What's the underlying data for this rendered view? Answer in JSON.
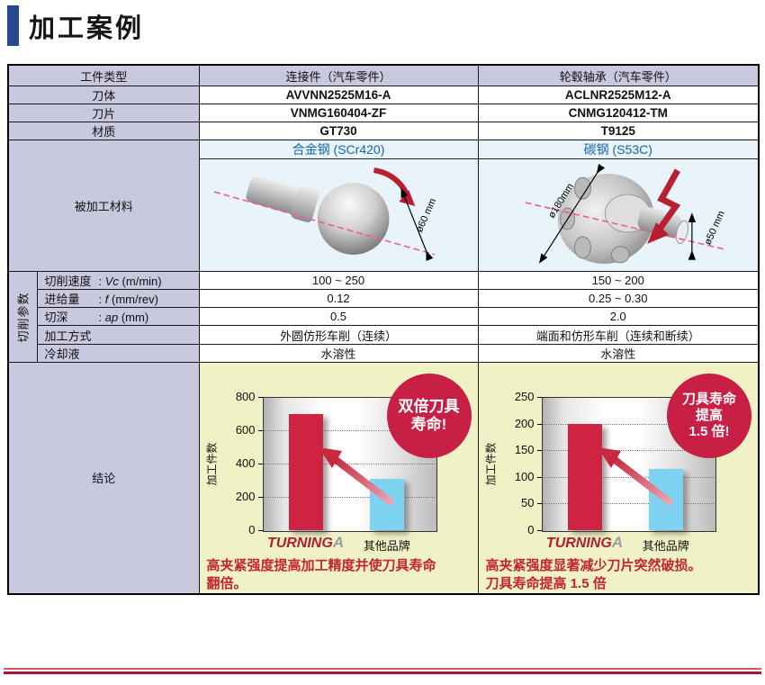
{
  "page": {
    "title": "加工案例"
  },
  "colors": {
    "accent_navy": "#27488f",
    "lavender": "#c8c8de",
    "light_blue": "#e9f3fa",
    "blue_text": "#1565ab",
    "yellow": "#f0f1c4",
    "red_bar": "#cf2342",
    "blue_bar": "#7ed3f2",
    "badge_red": "#c81f45",
    "caption_red": "#c32430",
    "rule_red": "#ab1330",
    "pink_dash": "#f056a2"
  },
  "table": {
    "rows": {
      "workpiece_type": {
        "label": "工件类型",
        "col1": "连接件（汽车零件）",
        "col2": "轮毂轴承（汽车零件）"
      },
      "tool_body": {
        "label": "刀体",
        "col1": "AVVNN2525M16-A",
        "col2": "ACLNR2525M12-A"
      },
      "insert": {
        "label": "刀片",
        "col1": "VNMG160404-ZF",
        "col2": "CNMG120412-TM"
      },
      "grade": {
        "label": "材质",
        "col1": "GT730",
        "col2": "T9125"
      },
      "material": {
        "label": "被加工材料",
        "col1_header": "合金钢 (SCr420)",
        "col2_header": "碳钢 (S53C)",
        "col1_dim": "ø60 mm",
        "col2_dim_outer": "ø180mm",
        "col2_dim_inner": "ø50 mm"
      },
      "params_group": "切削参数",
      "cutting_speed": {
        "label": "切削速度",
        "colon": ":",
        "symbol": "Vc",
        "unit": "(m/min)",
        "col1": "100 ~ 250",
        "col2": "150 ~ 200"
      },
      "feed": {
        "label": "进给量",
        "colon": ":",
        "symbol": "f",
        "unit": "(mm/rev)",
        "col1": "0.12",
        "col2": "0.25 ~ 0.30"
      },
      "depth_of_cut": {
        "label": "切深",
        "colon": ":",
        "symbol": "ap",
        "unit": "(mm)",
        "col1": "0.5",
        "col2": "2.0"
      },
      "method": {
        "label": "加工方式",
        "col1": "外圆仿形车削（连续）",
        "col2": "端面和仿形车削（连续和断续）"
      },
      "coolant": {
        "label": "冷却液",
        "col1": "水溶性",
        "col2": "水溶性"
      },
      "conclusion": {
        "label": "结论"
      }
    }
  },
  "logo": {
    "text": "TURNING",
    "suffix": "A"
  },
  "chart_data": [
    {
      "type": "bar",
      "title": "",
      "ylabel": "加工件数",
      "xlabel": "",
      "ylim": [
        0,
        800
      ],
      "yticks": [
        0,
        200,
        400,
        600,
        800
      ],
      "categories": [
        "TURNINGA",
        "其他品牌"
      ],
      "values": [
        700,
        310
      ],
      "bar_colors": [
        "#cf2342",
        "#7ed3f2"
      ],
      "grid": true,
      "legend_position": "none",
      "badge_lines": [
        "双倍刀具",
        "寿命!"
      ],
      "caption_lines": [
        "高夹紧强度提高加工精度并使刀具寿命",
        "翻倍。"
      ]
    },
    {
      "type": "bar",
      "title": "",
      "ylabel": "加工件数",
      "xlabel": "",
      "ylim": [
        0,
        250
      ],
      "yticks": [
        0,
        50,
        100,
        150,
        200,
        250
      ],
      "categories": [
        "TURNINGA",
        "其他品牌"
      ],
      "values": [
        200,
        115
      ],
      "bar_colors": [
        "#cf2342",
        "#7ed3f2"
      ],
      "grid": true,
      "legend_position": "none",
      "badge_lines": [
        "刀具寿命",
        "提高",
        "1.5 倍!"
      ],
      "caption_lines": [
        "高夹紧强度显著减少刀片突然破损。",
        "刀具寿命提高 1.5 倍"
      ]
    }
  ]
}
